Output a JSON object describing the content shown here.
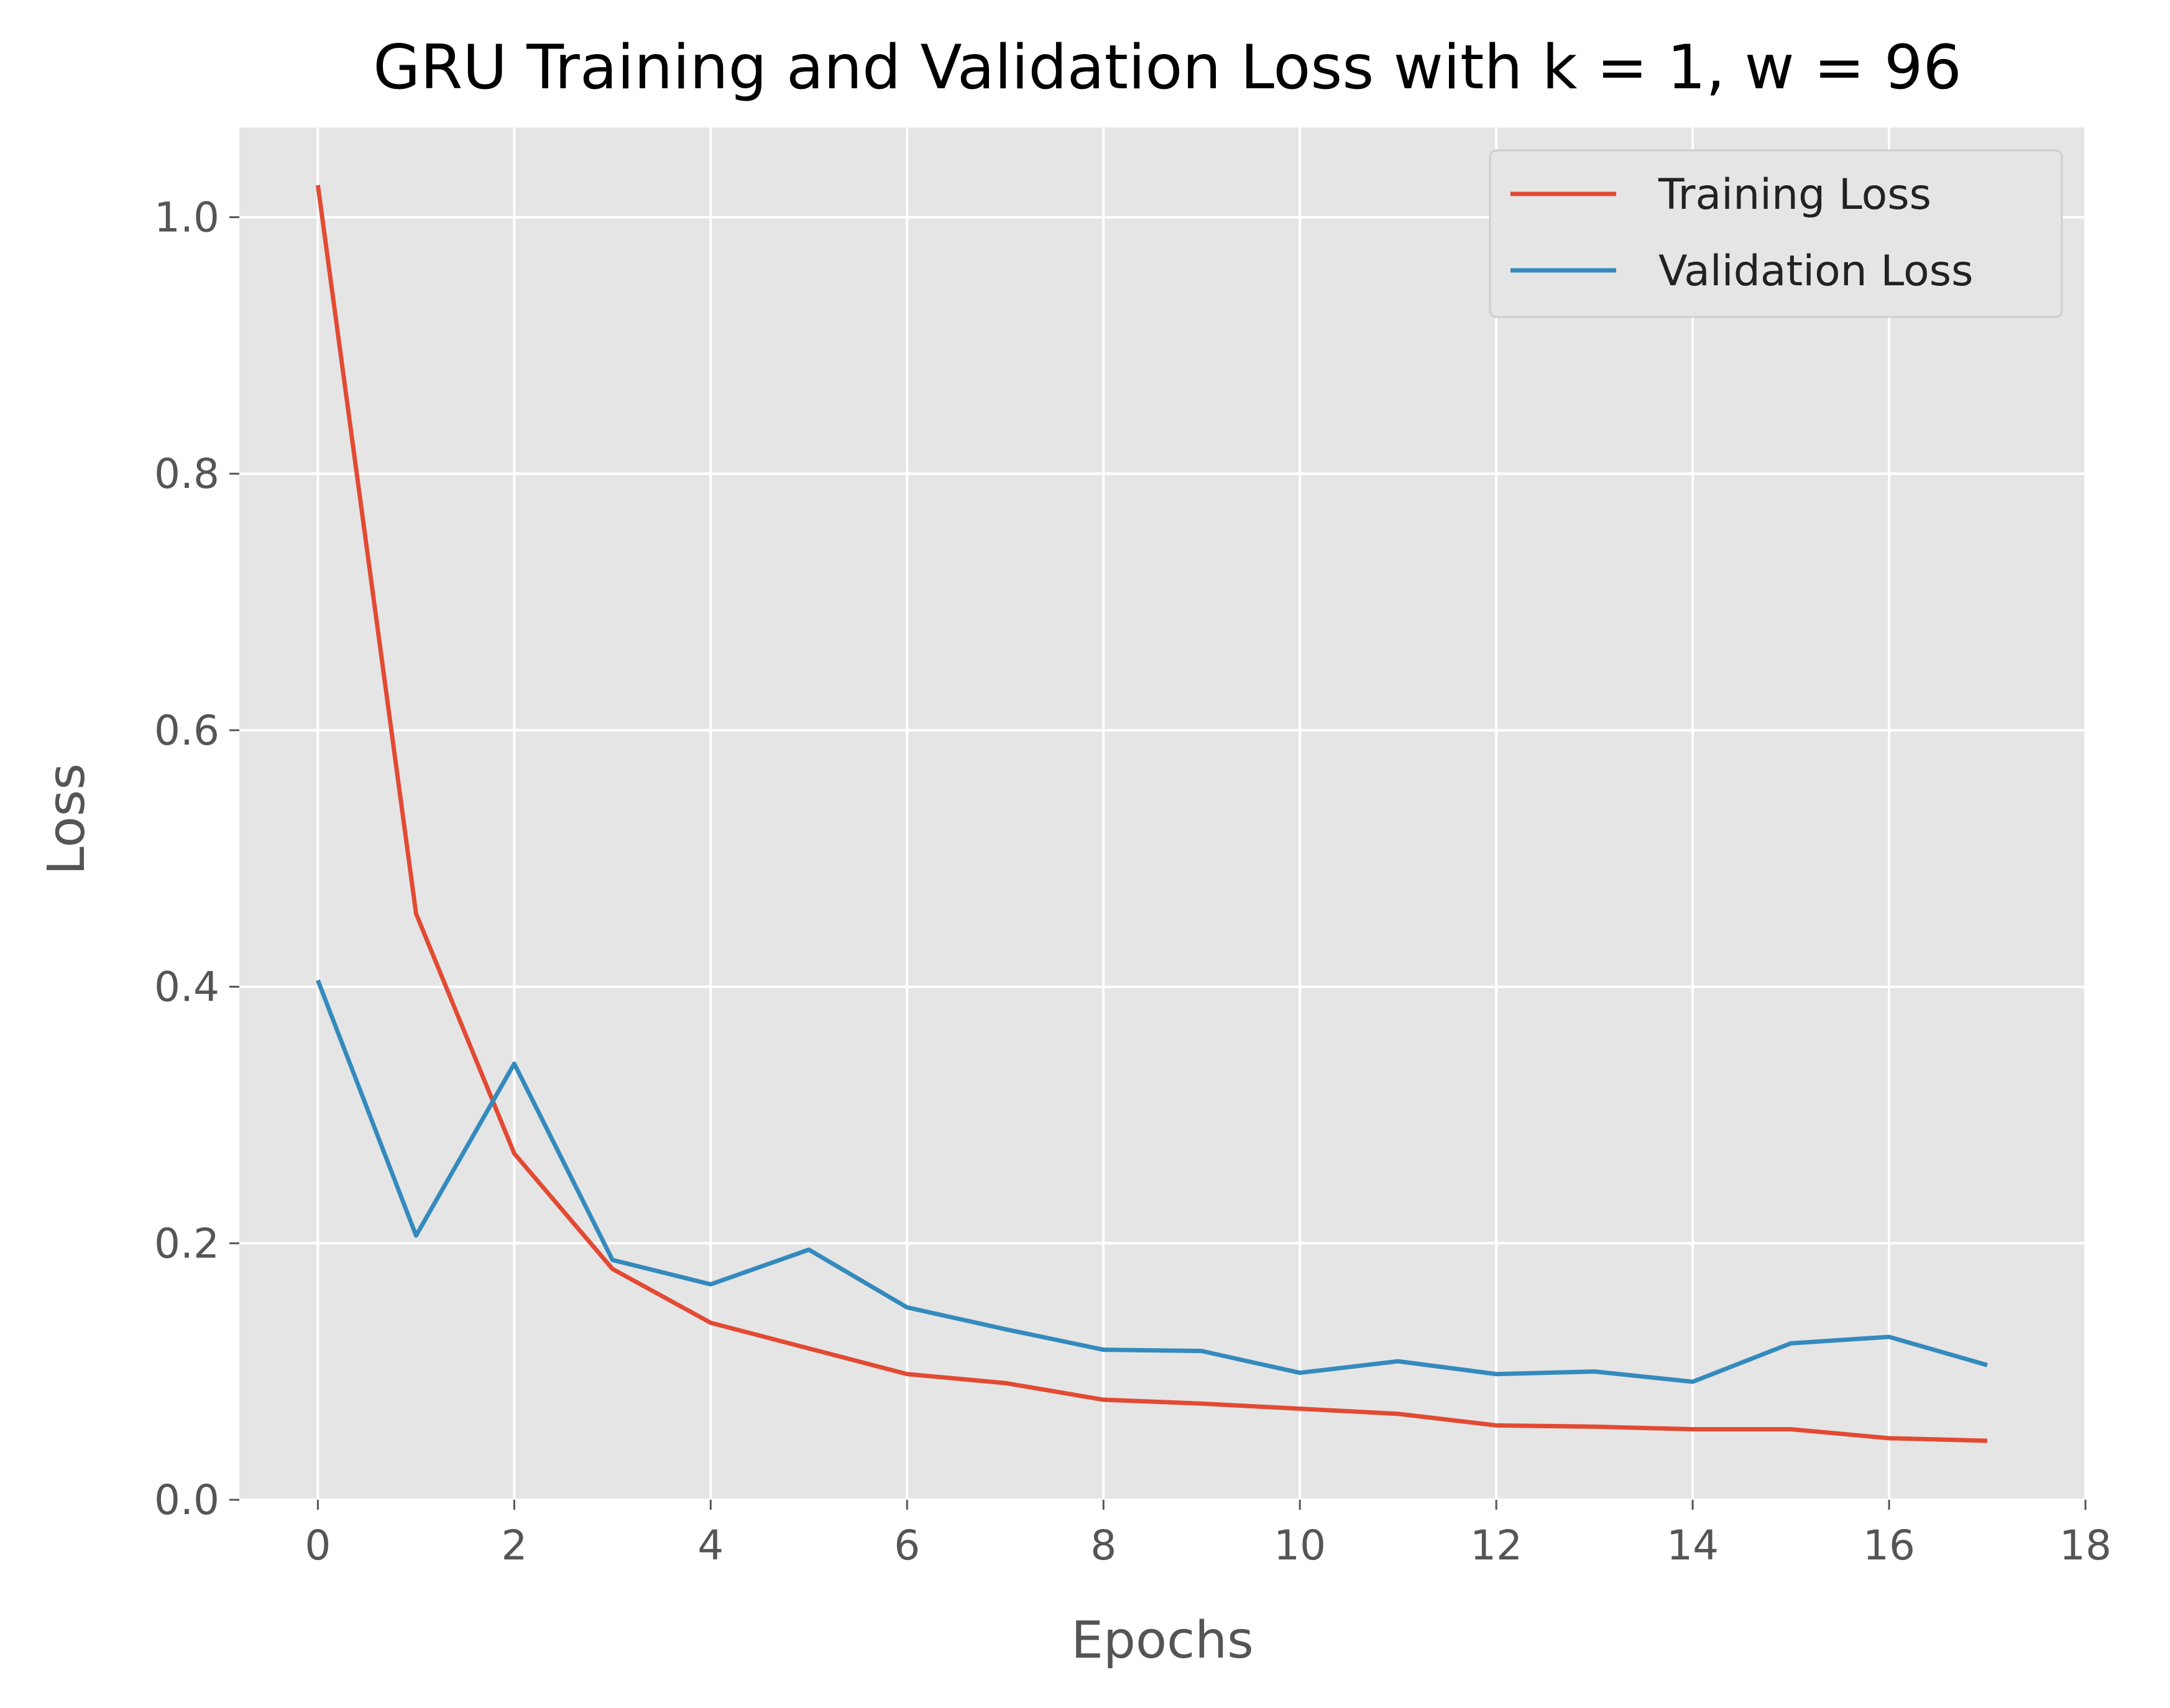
{
  "chart_data": {
    "type": "line",
    "title": "GRU Training and Validation Loss with k = 1, w = 96",
    "xlabel": "Epochs",
    "ylabel": "Loss",
    "xlim": [
      -0.8,
      18
    ],
    "ylim": [
      0,
      1.07
    ],
    "xticks": [
      0,
      2,
      4,
      6,
      8,
      10,
      12,
      14,
      16,
      18
    ],
    "yticks": [
      0.0,
      0.2,
      0.4,
      0.6,
      0.8,
      1.0
    ],
    "xtick_labels": [
      "0",
      "2",
      "4",
      "6",
      "8",
      "10",
      "12",
      "14",
      "16",
      "18"
    ],
    "ytick_labels": [
      "0.0",
      "0.2",
      "0.4",
      "0.6",
      "0.8",
      "1.0"
    ],
    "grid": true,
    "legend_position": "top-right",
    "x": [
      0,
      1,
      2,
      3,
      4,
      5,
      6,
      7,
      8,
      9,
      10,
      11,
      12,
      13,
      14,
      15,
      16,
      17
    ],
    "series": [
      {
        "name": "Training Loss",
        "color": "#e24a33",
        "values": [
          1.025,
          0.457,
          0.27,
          0.18,
          0.138,
          0.118,
          0.098,
          0.091,
          0.078,
          0.075,
          0.071,
          0.067,
          0.058,
          0.057,
          0.055,
          0.055,
          0.048,
          0.046
        ]
      },
      {
        "name": "Validation Loss",
        "color": "#348abd",
        "values": [
          0.405,
          0.206,
          0.34,
          0.187,
          0.168,
          0.195,
          0.15,
          0.133,
          0.117,
          0.116,
          0.099,
          0.108,
          0.098,
          0.1,
          0.092,
          0.122,
          0.127,
          0.105
        ]
      }
    ]
  },
  "style": {
    "plot_background": "#e5e5e5",
    "grid_color": "#ffffff",
    "tick_color": "#555555"
  }
}
